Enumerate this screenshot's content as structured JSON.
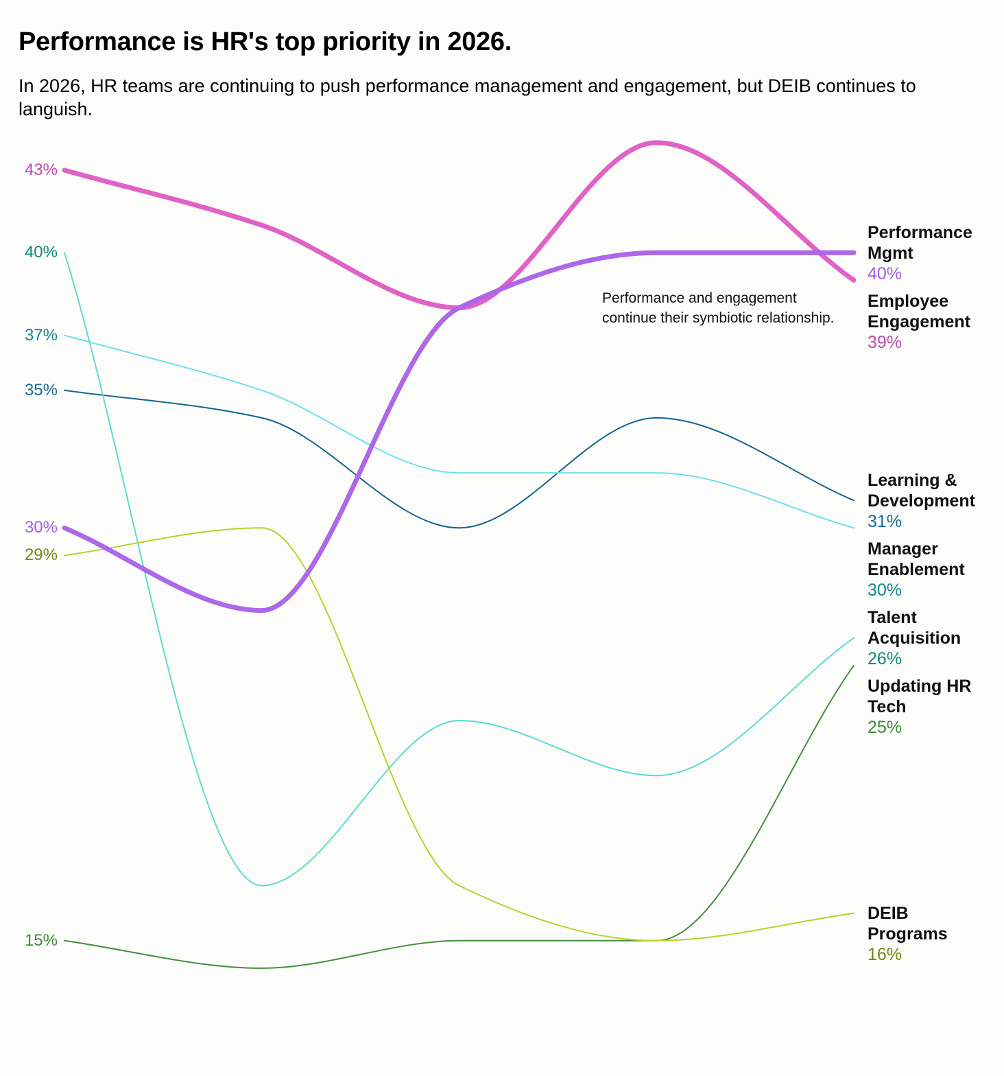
{
  "header": {
    "title": "Performance is HR's top priority in 2026.",
    "subtitle": "In 2026, HR teams are continuing to push performance management and engagement, but DEIB continues to languish."
  },
  "annotation": "Performance and engagement continue their symbiotic relationship.",
  "chart_data": {
    "type": "line",
    "title": "Performance is HR's top priority in 2026.",
    "subtitle": "In 2026, HR teams are continuing to push performance management and engagement, but DEIB continues to languish.",
    "xlabel": "",
    "ylabel": "",
    "x": [
      1,
      2,
      3,
      4,
      5
    ],
    "x_tick_labels_visible": false,
    "ylim": [
      13,
      45
    ],
    "grid": false,
    "legend": "direct labels at right end of lines",
    "annotation": "Performance and engagement continue their symbiotic relationship.",
    "series": [
      {
        "name": "Employee Engagement",
        "label_lines": [
          "Employee",
          "Engagement"
        ],
        "values": [
          43,
          41,
          38,
          44,
          39
        ],
        "start_label": "43%",
        "end_label": "39%",
        "color": "#df62c6",
        "label_color": "#c04aad",
        "emphasis": true
      },
      {
        "name": "Performance Mgmt",
        "label_lines": [
          "Performance",
          "Mgmt"
        ],
        "values": [
          30,
          27,
          38,
          40,
          40
        ],
        "start_label": "30%",
        "end_label": "40%",
        "color": "#ad67e8",
        "label_color": "#a35ee0",
        "emphasis": true
      },
      {
        "name": "Learning & Development",
        "label_lines": [
          "Learning &",
          "Development"
        ],
        "values": [
          35,
          34,
          30,
          34,
          31
        ],
        "start_label": "35%",
        "end_label": "31%",
        "color": "#14648f",
        "label_color": "#1a6a9a",
        "emphasis": false
      },
      {
        "name": "Manager Enablement",
        "label_lines": [
          "Manager",
          "Enablement"
        ],
        "values": [
          37,
          35,
          32,
          32,
          30
        ],
        "start_label": "37%",
        "end_label": "30%",
        "color": "#6fe0e8",
        "label_color": "#14878f",
        "emphasis": false
      },
      {
        "name": "Talent Acquisition",
        "label_lines": [
          "Talent",
          "Acquisition"
        ],
        "values": [
          40,
          17,
          23,
          21,
          26
        ],
        "start_label": "40%",
        "end_label": "26%",
        "color": "#5cdccf",
        "label_color": "#0e8a74",
        "emphasis": false
      },
      {
        "name": "Updating HR Tech",
        "label_lines": [
          "Updating HR",
          "Tech"
        ],
        "values": [
          15,
          14,
          15,
          15,
          25
        ],
        "start_label": "15%",
        "end_label": "25%",
        "color": "#438f3e",
        "label_color": "#3f8a3a",
        "emphasis": false
      },
      {
        "name": "DEIB Programs",
        "label_lines": [
          "DEIB",
          "Programs"
        ],
        "values": [
          29,
          30,
          17,
          15,
          16
        ],
        "start_label": "29%",
        "end_label": "16%",
        "color": "#bcd02a",
        "label_color": "#6b8a12",
        "emphasis": false
      }
    ]
  }
}
